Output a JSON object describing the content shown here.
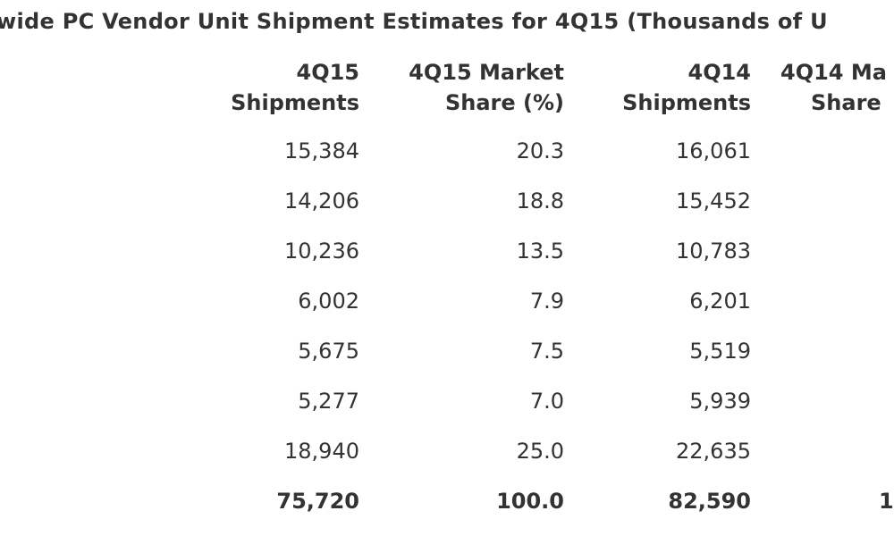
{
  "title": "wide PC Vendor Unit Shipment Estimates for 4Q15 (Thousands of U",
  "columns": [
    {
      "line1": "4Q15",
      "line2": "Shipments"
    },
    {
      "line1": "4Q15 Market",
      "line2": "Share (%)"
    },
    {
      "line1": "4Q14",
      "line2": "Shipments"
    },
    {
      "line1": "4Q14 Ma",
      "line2": "Share"
    }
  ],
  "rows": [
    {
      "shipments_4q15": "15,384",
      "share_4q15": "20.3",
      "shipments_4q14": "16,061"
    },
    {
      "shipments_4q15": "14,206",
      "share_4q15": "18.8",
      "shipments_4q14": "15,452"
    },
    {
      "shipments_4q15": "10,236",
      "share_4q15": "13.5",
      "shipments_4q14": "10,783"
    },
    {
      "shipments_4q15": "6,002",
      "share_4q15": "7.9",
      "shipments_4q14": "6,201"
    },
    {
      "shipments_4q15": "5,675",
      "share_4q15": "7.5",
      "shipments_4q14": "5,519"
    },
    {
      "shipments_4q15": "5,277",
      "share_4q15": "7.0",
      "shipments_4q14": "5,939"
    },
    {
      "shipments_4q15": "18,940",
      "share_4q15": "25.0",
      "shipments_4q14": "22,635"
    }
  ],
  "total": {
    "shipments_4q15": "75,720",
    "share_4q15": "100.0",
    "shipments_4q14": "82,590",
    "share_4q14_partial": "1"
  }
}
